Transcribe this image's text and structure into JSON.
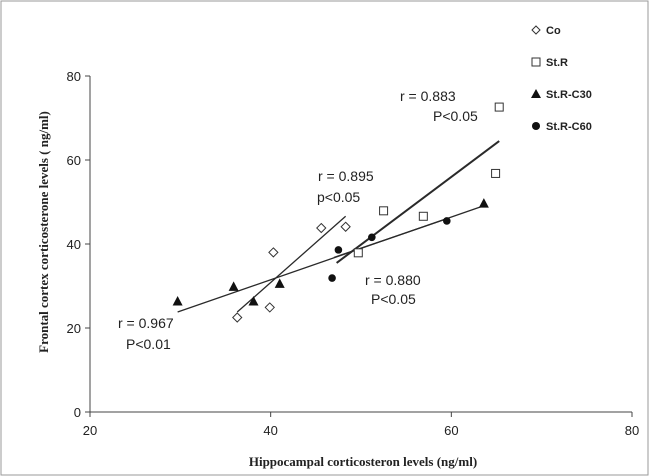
{
  "chart_data": {
    "type": "scatter",
    "xlabel": "Hippocampal corticosteron levels (ng/ml)",
    "ylabel": "Frontal cortex corticosterone levels ( ng/ml)",
    "xlim": [
      20,
      80
    ],
    "ylim": [
      0,
      80
    ],
    "xticks": [
      20,
      40,
      60,
      80
    ],
    "yticks": [
      0,
      20,
      40,
      60,
      80
    ],
    "grid": false,
    "legend_position": "top-right",
    "series": [
      {
        "name": "Co",
        "marker": "diamond-open",
        "points": [
          [
            36.3,
            22.5
          ],
          [
            39.9,
            24.9
          ],
          [
            40.3,
            38.0
          ],
          [
            45.6,
            43.8
          ],
          [
            48.3,
            44.1
          ]
        ],
        "trendline": [
          [
            36.3,
            23.8
          ],
          [
            48.3,
            46.6
          ]
        ],
        "r_label": "r = 0.895",
        "p_label": "p<0.05"
      },
      {
        "name": "St.R",
        "marker": "square-open",
        "points": [
          [
            49.7,
            37.9
          ],
          [
            52.5,
            47.9
          ],
          [
            56.9,
            46.6
          ],
          [
            64.9,
            56.8
          ],
          [
            65.3,
            72.6
          ]
        ],
        "trendline": [
          [
            47.3,
            35.5
          ],
          [
            65.3,
            64.5
          ]
        ],
        "r_label": "r = 0.883",
        "p_label": "P<0.05"
      },
      {
        "name": "St.R-C30",
        "marker": "triangle-filled",
        "points": [
          [
            29.7,
            26.3
          ],
          [
            35.9,
            29.8
          ],
          [
            38.1,
            26.3
          ],
          [
            41.0,
            30.5
          ],
          [
            63.6,
            49.6
          ]
        ],
        "trendline": [
          [
            29.7,
            23.8
          ],
          [
            63.6,
            49.1
          ]
        ],
        "r_label": "r = 0.967",
        "p_label": "P<0.01"
      },
      {
        "name": "St.R-C60",
        "marker": "circle-filled",
        "points": [
          [
            46.8,
            31.9
          ],
          [
            47.5,
            38.6
          ],
          [
            51.2,
            41.6
          ],
          [
            59.5,
            45.5
          ]
        ],
        "trendline": [
          [
            47.0,
            36.8
          ],
          [
            59.5,
            46.0
          ]
        ],
        "r_label": "r = 0.880",
        "p_label": "P<0.05"
      }
    ]
  }
}
